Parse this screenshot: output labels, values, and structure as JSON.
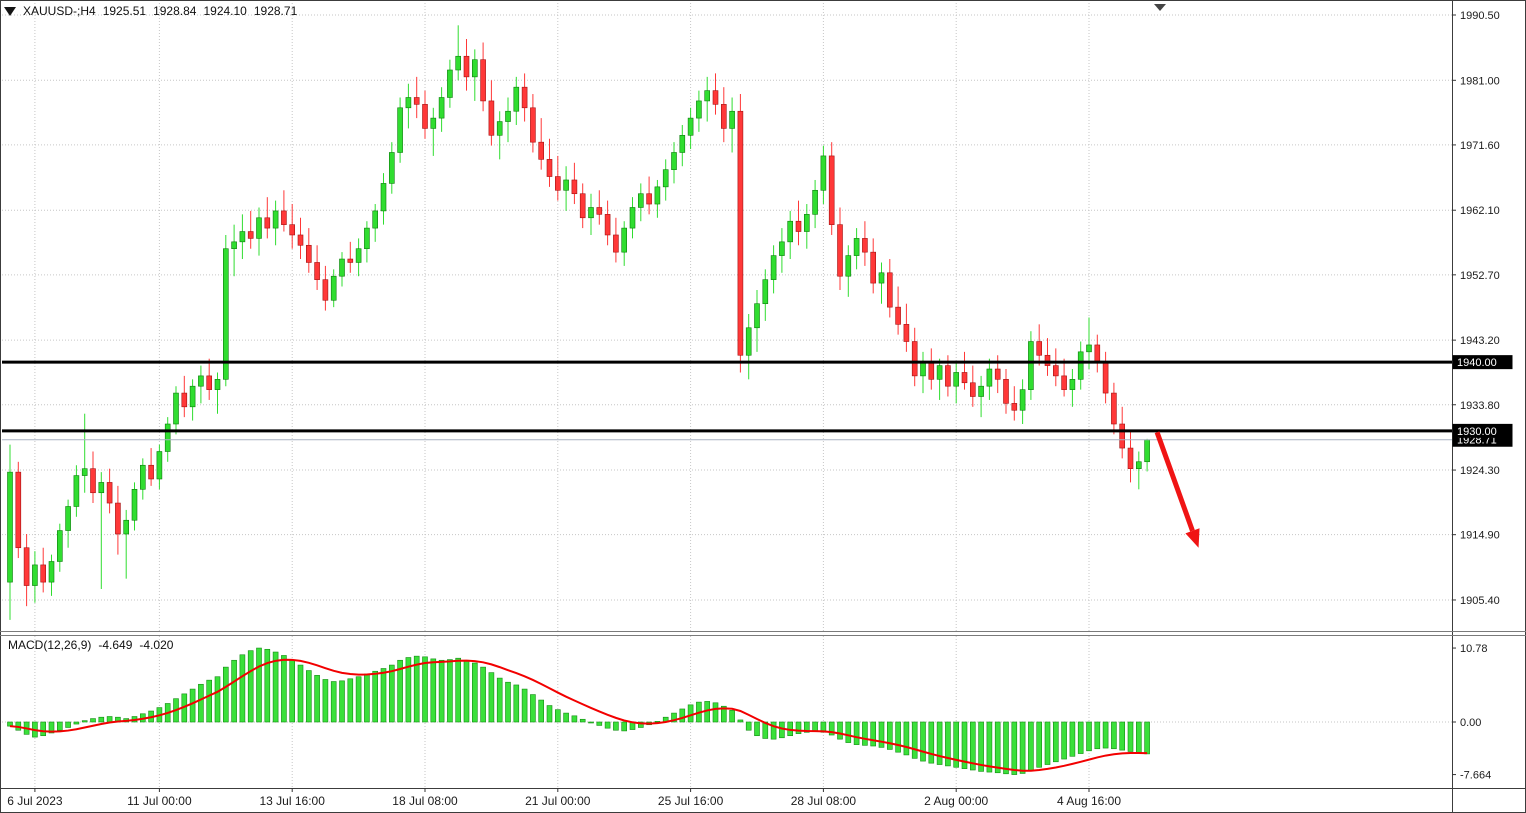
{
  "header": {
    "symbol_timeframe": "XAUUSD-;H4",
    "open": "1925.51",
    "high": "1928.84",
    "low": "1924.10",
    "close": "1928.71"
  },
  "macd_panel": {
    "name": "MACD(12,26,9)",
    "macd_value": "-4.649",
    "signal_value": "-4.020",
    "axis_labels": [
      "10.78",
      "0.00",
      "-7.664"
    ],
    "axis_values": [
      10.78,
      0.0,
      -7.664
    ]
  },
  "y_axis": {
    "labels": [
      "1990.50",
      "1981.00",
      "1971.60",
      "1962.10",
      "1952.70",
      "1943.20",
      "1933.80",
      "1924.30",
      "1914.90",
      "1905.40"
    ],
    "values": [
      1990.5,
      1981.0,
      1971.6,
      1962.1,
      1952.7,
      1943.2,
      1933.8,
      1924.3,
      1914.9,
      1905.4
    ]
  },
  "x_axis": {
    "ticks": [
      {
        "index": 3,
        "label": "6 Jul 2023"
      },
      {
        "index": 18,
        "label": "11 Jul 00:00"
      },
      {
        "index": 34,
        "label": "13 Jul 16:00"
      },
      {
        "index": 50,
        "label": "18 Jul 08:00"
      },
      {
        "index": 66,
        "label": "21 Jul 00:00"
      },
      {
        "index": 82,
        "label": "25 Jul 16:00"
      },
      {
        "index": 98,
        "label": "28 Jul 08:00"
      },
      {
        "index": 114,
        "label": "2 Aug 00:00"
      },
      {
        "index": 130,
        "label": "4 Aug 16:00"
      }
    ]
  },
  "chart_data": {
    "type": "candlestick",
    "symbol": "XAUUSD-",
    "timeframe": "H4",
    "last_bar_ohlc": {
      "open": 1925.51,
      "high": 1928.84,
      "low": 1924.1,
      "close": 1928.71
    },
    "y_range": [
      1901.0,
      1992.5
    ],
    "grid": true,
    "horizontal_levels": [
      {
        "price": 1940.0,
        "label": "1940.00"
      },
      {
        "price": 1930.0,
        "label": "1930.00"
      }
    ],
    "current_price": 1928.71,
    "current_price_label": "1928.71",
    "annotation_arrow": {
      "from": {
        "i": 138.2,
        "price": 1929.8
      },
      "to": {
        "i": 143.2,
        "price": 1913.0
      }
    },
    "candles": [
      [
        1908,
        1928,
        1902.5,
        1924
      ],
      [
        1924,
        1925.5,
        1911.5,
        1913
      ],
      [
        1913,
        1915,
        1904.5,
        1907.5
      ],
      [
        1907.5,
        1912.5,
        1905,
        1910.5
      ],
      [
        1910.5,
        1913,
        1906.5,
        1908
      ],
      [
        1908,
        1912,
        1906,
        1911
      ],
      [
        1911,
        1916.5,
        1909.5,
        1915.5
      ],
      [
        1915.5,
        1920,
        1913,
        1919
      ],
      [
        1919,
        1925,
        1917.5,
        1923.5
      ],
      [
        1923.5,
        1932.5,
        1921,
        1924.5
      ],
      [
        1924.5,
        1927,
        1919.5,
        1921
      ],
      [
        1921,
        1924,
        1907,
        1922.5
      ],
      [
        1922.5,
        1924.5,
        1918,
        1919.5
      ],
      [
        1919.5,
        1922,
        1912,
        1915
      ],
      [
        1915,
        1918.5,
        1908.5,
        1917
      ],
      [
        1917,
        1922.5,
        1915.5,
        1921.5
      ],
      [
        1921.5,
        1926,
        1920,
        1925
      ],
      [
        1925,
        1927.5,
        1922,
        1923
      ],
      [
        1923,
        1928,
        1921.5,
        1927
      ],
      [
        1927,
        1932,
        1925.5,
        1931
      ],
      [
        1931,
        1936.5,
        1929.5,
        1935.5
      ],
      [
        1935.5,
        1938,
        1932,
        1933.5
      ],
      [
        1933.5,
        1937.5,
        1931.5,
        1936.5
      ],
      [
        1936.5,
        1939.5,
        1934,
        1938
      ],
      [
        1938,
        1940.5,
        1934.5,
        1936
      ],
      [
        1936,
        1938.5,
        1932.5,
        1937.5
      ],
      [
        1937.5,
        1958.5,
        1936.5,
        1956.5
      ],
      [
        1956.5,
        1960,
        1952.5,
        1957.5
      ],
      [
        1957.5,
        1961.5,
        1955,
        1959
      ],
      [
        1959,
        1962,
        1956.5,
        1958
      ],
      [
        1958,
        1962.5,
        1955.5,
        1961
      ],
      [
        1961,
        1964,
        1958,
        1959.5
      ],
      [
        1959.5,
        1963.5,
        1957,
        1962
      ],
      [
        1962,
        1965,
        1959,
        1960
      ],
      [
        1960,
        1963,
        1956.5,
        1958.5
      ],
      [
        1958.5,
        1961,
        1955,
        1957
      ],
      [
        1957,
        1959.5,
        1953,
        1954.5
      ],
      [
        1954.5,
        1957,
        1950.5,
        1952
      ],
      [
        1952,
        1954,
        1947.5,
        1949
      ],
      [
        1949,
        1953.5,
        1948,
        1952.5
      ],
      [
        1952.5,
        1956,
        1951,
        1955
      ],
      [
        1955,
        1957.5,
        1953,
        1954.5
      ],
      [
        1954.5,
        1958,
        1952.5,
        1956.5
      ],
      [
        1956.5,
        1960.5,
        1954.5,
        1959.5
      ],
      [
        1959.5,
        1963,
        1957.5,
        1962
      ],
      [
        1962,
        1967.5,
        1960,
        1966
      ],
      [
        1966,
        1972,
        1964.5,
        1970.5
      ],
      [
        1970.5,
        1978.5,
        1969,
        1977
      ],
      [
        1977,
        1980.5,
        1974,
        1978.5
      ],
      [
        1978.5,
        1981.5,
        1975.5,
        1977.5
      ],
      [
        1977.5,
        1979.5,
        1972.5,
        1974
      ],
      [
        1974,
        1977,
        1970,
        1975.5
      ],
      [
        1975.5,
        1980,
        1973.5,
        1978.5
      ],
      [
        1978.5,
        1984,
        1977,
        1982.5
      ],
      [
        1982.5,
        1989,
        1981,
        1984.5
      ],
      [
        1984.5,
        1987,
        1979.5,
        1981.5
      ],
      [
        1981.5,
        1985.5,
        1978,
        1984
      ],
      [
        1984,
        1986.5,
        1976.5,
        1978
      ],
      [
        1978,
        1981,
        1971.5,
        1973
      ],
      [
        1973,
        1976.5,
        1969.5,
        1975
      ],
      [
        1975,
        1978.5,
        1972,
        1976.5
      ],
      [
        1976.5,
        1981.5,
        1974.5,
        1980
      ],
      [
        1980,
        1982,
        1975,
        1977
      ],
      [
        1977,
        1979,
        1970.5,
        1972
      ],
      [
        1972,
        1975.5,
        1968,
        1969.5
      ],
      [
        1969.5,
        1972.5,
        1965.5,
        1967
      ],
      [
        1967,
        1970,
        1963.5,
        1965
      ],
      [
        1965,
        1968.5,
        1962,
        1966.5
      ],
      [
        1966.5,
        1969,
        1963,
        1964.5
      ],
      [
        1964.5,
        1966,
        1959.5,
        1961
      ],
      [
        1961,
        1964.5,
        1958.5,
        1962.5
      ],
      [
        1962.5,
        1965,
        1960,
        1961.5
      ],
      [
        1961.5,
        1963.5,
        1957,
        1958.5
      ],
      [
        1958.5,
        1961,
        1954.5,
        1956
      ],
      [
        1956,
        1960.5,
        1954,
        1959.5
      ],
      [
        1959.5,
        1964,
        1958,
        1962.5
      ],
      [
        1962.5,
        1966,
        1960.5,
        1964.5
      ],
      [
        1964.5,
        1967,
        1961.5,
        1963
      ],
      [
        1963,
        1966.5,
        1961,
        1965.5
      ],
      [
        1965.5,
        1969.5,
        1963.5,
        1968
      ],
      [
        1968,
        1972,
        1966,
        1970.5
      ],
      [
        1970.5,
        1974.5,
        1968.5,
        1973
      ],
      [
        1973,
        1977,
        1971,
        1975.5
      ],
      [
        1975.5,
        1979.5,
        1973.5,
        1978
      ],
      [
        1978,
        1981.5,
        1975,
        1979.5
      ],
      [
        1979.5,
        1982,
        1976,
        1977.5
      ],
      [
        1977.5,
        1980,
        1972,
        1974
      ],
      [
        1974,
        1978.5,
        1970.5,
        1976.5
      ],
      [
        1976.5,
        1979,
        1938.5,
        1941
      ],
      [
        1941,
        1947,
        1937.5,
        1945
      ],
      [
        1945,
        1950.5,
        1941.5,
        1948.5
      ],
      [
        1948.5,
        1953.5,
        1946,
        1952
      ],
      [
        1952,
        1957,
        1950,
        1955.5
      ],
      [
        1955.5,
        1959.5,
        1953,
        1957.5
      ],
      [
        1957.5,
        1962,
        1955,
        1960.5
      ],
      [
        1960.5,
        1963.5,
        1957,
        1959
      ],
      [
        1959,
        1963,
        1956.5,
        1961.5
      ],
      [
        1961.5,
        1966.5,
        1959.5,
        1965
      ],
      [
        1965,
        1971.5,
        1963,
        1970
      ],
      [
        1970,
        1972,
        1958.5,
        1960
      ],
      [
        1960,
        1962.5,
        1950.5,
        1952.5
      ],
      [
        1952.5,
        1957,
        1949.5,
        1955.5
      ],
      [
        1955.5,
        1959.5,
        1953.5,
        1958
      ],
      [
        1958,
        1960.5,
        1954,
        1956
      ],
      [
        1956,
        1958,
        1950,
        1951.5
      ],
      [
        1951.5,
        1954.5,
        1948.5,
        1953
      ],
      [
        1953,
        1955,
        1946.5,
        1948
      ],
      [
        1948,
        1951,
        1944,
        1945.5
      ],
      [
        1945.5,
        1948.5,
        1941.5,
        1943
      ],
      [
        1943,
        1945,
        1936.5,
        1938
      ],
      [
        1938,
        1941.5,
        1935.5,
        1940
      ],
      [
        1940,
        1942,
        1936,
        1937.5
      ],
      [
        1937.5,
        1940.5,
        1934.5,
        1939.5
      ],
      [
        1939.5,
        1941,
        1935,
        1936.5
      ],
      [
        1936.5,
        1940,
        1934,
        1938.5
      ],
      [
        1938.5,
        1941.5,
        1936,
        1937
      ],
      [
        1937,
        1939.5,
        1933.5,
        1935
      ],
      [
        1935,
        1938,
        1932,
        1936.5
      ],
      [
        1936.5,
        1940.5,
        1934.5,
        1939
      ],
      [
        1939,
        1941,
        1935.5,
        1937.5
      ],
      [
        1937.5,
        1939,
        1932.5,
        1934
      ],
      [
        1934,
        1936.5,
        1931.5,
        1933
      ],
      [
        1933,
        1937.5,
        1931,
        1936
      ],
      [
        1936,
        1944.5,
        1934.5,
        1943
      ],
      [
        1943,
        1945.5,
        1939.5,
        1941
      ],
      [
        1941,
        1943.5,
        1938,
        1939.5
      ],
      [
        1939.5,
        1942,
        1936.5,
        1938
      ],
      [
        1938,
        1940.5,
        1935,
        1936
      ],
      [
        1936,
        1939,
        1933.5,
        1937.5
      ],
      [
        1937.5,
        1943,
        1936,
        1941.5
      ],
      [
        1941.5,
        1946.5,
        1939,
        1942.5
      ],
      [
        1942.5,
        1944,
        1938.5,
        1940
      ],
      [
        1940,
        1941.5,
        1934,
        1935.5
      ],
      [
        1935.5,
        1937,
        1929.5,
        1931
      ],
      [
        1931,
        1933.5,
        1926,
        1927.5
      ],
      [
        1927.5,
        1930,
        1922.5,
        1924.5
      ],
      [
        1924.5,
        1927,
        1921.5,
        1925.51
      ],
      [
        1925.51,
        1928.84,
        1924.1,
        1928.71
      ]
    ],
    "indicator": {
      "name": "MACD",
      "params": [
        12,
        26,
        9
      ],
      "last_macd": -4.649,
      "last_signal": -4.02,
      "signal_ema_period": 9,
      "histogram": [
        -0.6,
        -1.2,
        -1.8,
        -2.2,
        -2.0,
        -1.6,
        -1.2,
        -0.8,
        -0.3,
        0.2,
        0.5,
        0.7,
        0.8,
        0.7,
        0.5,
        0.8,
        1.2,
        1.6,
        2.1,
        2.7,
        3.4,
        4.1,
        4.8,
        5.5,
        6.1,
        6.6,
        8.0,
        9.0,
        9.8,
        10.4,
        10.78,
        10.6,
        10.2,
        9.7,
        9.0,
        8.3,
        7.5,
        6.8,
        6.2,
        5.9,
        6.0,
        6.3,
        6.6,
        7.0,
        7.4,
        7.8,
        8.3,
        9.0,
        9.4,
        9.6,
        9.5,
        9.2,
        9.0,
        9.1,
        9.3,
        9.0,
        8.6,
        8.0,
        7.2,
        6.4,
        5.8,
        5.4,
        4.8,
        4.0,
        3.2,
        2.4,
        1.8,
        1.3,
        0.9,
        0.4,
        -0.1,
        -0.5,
        -0.9,
        -1.2,
        -1.3,
        -1.1,
        -0.8,
        -0.4,
        0.1,
        0.7,
        1.3,
        1.9,
        2.5,
        2.9,
        3.0,
        2.8,
        2.3,
        1.7,
        0.3,
        -1.2,
        -2.0,
        -2.4,
        -2.5,
        -2.3,
        -2.0,
        -1.7,
        -1.5,
        -1.4,
        -1.5,
        -1.9,
        -2.5,
        -3.0,
        -3.3,
        -3.4,
        -3.5,
        -3.7,
        -4.0,
        -4.4,
        -4.8,
        -5.3,
        -5.7,
        -6.0,
        -6.2,
        -6.4,
        -6.6,
        -6.8,
        -7.0,
        -7.2,
        -7.3,
        -7.4,
        -7.55,
        -7.664,
        -7.5,
        -7.1,
        -6.6,
        -6.2,
        -5.8,
        -5.4,
        -5.0,
        -4.6,
        -4.2,
        -3.9,
        -3.8,
        -3.9,
        -4.1,
        -4.3,
        -4.5,
        -4.649
      ]
    }
  },
  "colors": {
    "up": "#30dd30",
    "up_border": "#0b7d0b",
    "down": "#ff3838",
    "down_border": "#a31111",
    "histogram": "#3ae03a",
    "histogram_border": "#128c12",
    "signal_line": "#f20000",
    "level_line": "#000000",
    "current_price_line": "#a9b2c4",
    "arrow": "#f01414",
    "axis_text": "#1b1b1b",
    "price_tag_bg": "#000000",
    "price_tag_text": "#ffffff"
  }
}
